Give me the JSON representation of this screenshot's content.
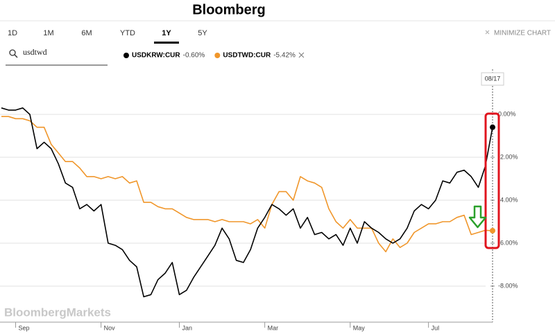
{
  "header": {
    "title": "Bloomberg"
  },
  "toolbar": {
    "tabs": [
      "1D",
      "1M",
      "6M",
      "YTD",
      "1Y",
      "5Y"
    ],
    "selected_tab": "1Y",
    "minimize": "MINIMIZE CHART",
    "search": "usdtwd"
  },
  "chart_data": {
    "type": "line",
    "categories": [
      null,
      null,
      "Sep",
      null,
      null,
      null,
      null,
      null,
      null,
      null,
      null,
      null,
      null,
      null,
      "Nov",
      null,
      null,
      null,
      null,
      null,
      null,
      null,
      null,
      null,
      null,
      "Jan",
      null,
      null,
      null,
      null,
      null,
      null,
      null,
      null,
      null,
      null,
      null,
      "Mar",
      null,
      null,
      null,
      null,
      null,
      null,
      null,
      null,
      null,
      null,
      null,
      "May",
      null,
      null,
      null,
      null,
      null,
      null,
      null,
      null,
      null,
      null,
      "Jul",
      null,
      null,
      null,
      null,
      null,
      null,
      null,
      null,
      null
    ],
    "series": [
      {
        "name": "USDKRW:CUR",
        "change": "-0.60%",
        "color": "#000000",
        "values": [
          0.3,
          0.2,
          0.2,
          0.3,
          0,
          -1.6,
          -1.3,
          -1.6,
          -2.3,
          -3.2,
          -3.4,
          -4.4,
          -4.2,
          -4.5,
          -4.2,
          -6.0,
          -6.1,
          -6.3,
          -6.8,
          -7.1,
          -8.5,
          -8.4,
          -7.7,
          -7.4,
          -6.9,
          -8.4,
          -8.2,
          -7.6,
          -7.1,
          -6.6,
          -6.1,
          -5.3,
          -5.8,
          -6.8,
          -6.9,
          -6.3,
          -5.3,
          -4.8,
          -4.2,
          -4.4,
          -4.7,
          -4.4,
          -5.3,
          -4.8,
          -5.6,
          -5.5,
          -5.8,
          -5.6,
          -6.1,
          -5.3,
          -6.0,
          -5.0,
          -5.3,
          -5.5,
          -5.8,
          -6.0,
          -5.8,
          -5.3,
          -4.5,
          -4.2,
          -4.4,
          -4.0,
          -3.1,
          -3.2,
          -2.7,
          -2.6,
          -2.9,
          -3.4,
          -2.4,
          -0.6
        ]
      },
      {
        "name": "USDTWD:CUR",
        "change": "-5.42%",
        "color": "#f0962a",
        "values": [
          -0.1,
          -0.1,
          -0.2,
          -0.2,
          -0.3,
          -0.6,
          -0.6,
          -1.4,
          -1.8,
          -2.2,
          -2.2,
          -2.5,
          -2.9,
          -2.9,
          -3.0,
          -2.9,
          -3.0,
          -2.9,
          -3.2,
          -3.1,
          -4.1,
          -4.1,
          -4.3,
          -4.4,
          -4.4,
          -4.6,
          -4.8,
          -4.9,
          -4.9,
          -4.9,
          -5.0,
          -4.9,
          -5.0,
          -5.0,
          -5.0,
          -5.1,
          -4.9,
          -5.3,
          -4.2,
          -3.6,
          -3.6,
          -4.0,
          -2.9,
          -3.1,
          -3.2,
          -3.4,
          -4.4,
          -5.0,
          -5.3,
          -4.9,
          -5.3,
          -5.3,
          -5.3,
          -6.0,
          -6.4,
          -5.8,
          -6.2,
          -6.0,
          -5.5,
          -5.3,
          -5.1,
          -5.1,
          -5.0,
          -5.0,
          -4.8,
          -4.7,
          -5.6,
          -5.5,
          -5.4,
          -5.42
        ]
      }
    ],
    "ylim": [
      -9.68,
      2.1
    ],
    "yticks": [
      {
        "value": 0,
        "label": "0.00%"
      },
      {
        "value": -2,
        "label": "-2.00%"
      },
      {
        "value": -4,
        "label": "-4.00%"
      },
      {
        "value": -6,
        "label": "-6.00%"
      },
      {
        "value": -8,
        "label": "-8.00%"
      }
    ],
    "grid": true,
    "date_marker": "08/17",
    "watermark": "BloombergMarkets"
  }
}
